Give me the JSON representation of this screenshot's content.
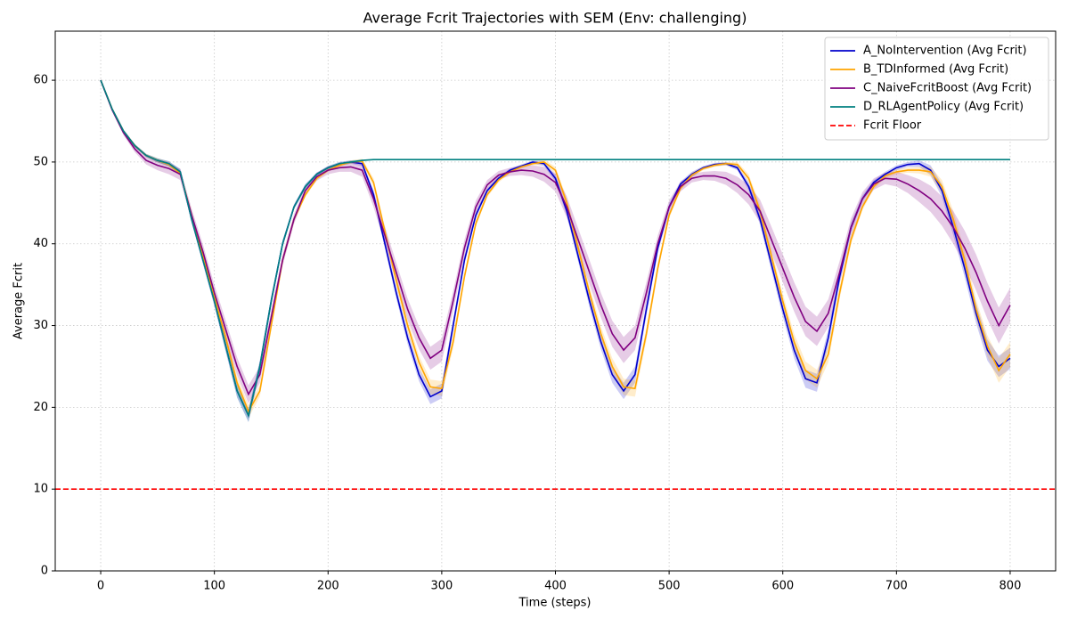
{
  "chart_data": {
    "type": "line",
    "title": "Average Fcrit Trajectories with SEM (Env: challenging)",
    "x_label": "Time (steps)",
    "y_label": "Average Fcrit",
    "x": [
      0,
      10,
      20,
      30,
      40,
      50,
      60,
      70,
      80,
      90,
      100,
      110,
      120,
      130,
      140,
      150,
      160,
      170,
      180,
      190,
      200,
      210,
      220,
      230,
      240,
      250,
      260,
      270,
      280,
      290,
      300,
      310,
      320,
      330,
      340,
      350,
      360,
      370,
      380,
      390,
      400,
      410,
      420,
      430,
      440,
      450,
      460,
      470,
      480,
      490,
      500,
      510,
      520,
      530,
      540,
      550,
      560,
      570,
      580,
      590,
      600,
      610,
      620,
      630,
      640,
      650,
      660,
      670,
      680,
      690,
      700,
      710,
      720,
      730,
      740,
      750,
      760,
      770,
      780,
      790,
      800
    ],
    "series": [
      {
        "name": "A_NoIntervention (Avg Fcrit)",
        "color": "#0000cc",
        "values": [
          60,
          56.5,
          53.8,
          52,
          50.8,
          50.2,
          49.8,
          48.8,
          43,
          38,
          33,
          27.5,
          22,
          19,
          25,
          33,
          40,
          44.5,
          47,
          48.5,
          49.3,
          49.8,
          50,
          49.8,
          46,
          40,
          34,
          28.5,
          24,
          21.3,
          22,
          30,
          38,
          43.5,
          46.5,
          48,
          49,
          49.5,
          50,
          49.8,
          48,
          44,
          38.5,
          33,
          28,
          24,
          22,
          24,
          32,
          39.5,
          44.5,
          47.3,
          48.5,
          49.3,
          49.7,
          49.8,
          49.3,
          47,
          43,
          37.5,
          32,
          27,
          23.5,
          23,
          28.5,
          36,
          42,
          45.5,
          47.5,
          48.5,
          49.3,
          49.7,
          49.8,
          49,
          46.5,
          42,
          37,
          31.5,
          27,
          25,
          26
        ],
        "sem": [
          0,
          0.1,
          0.15,
          0.2,
          0.2,
          0.25,
          0.3,
          0.3,
          0.4,
          0.5,
          0.6,
          0.7,
          0.8,
          0.8,
          0.7,
          0.6,
          0.4,
          0.3,
          0.3,
          0.2,
          0.2,
          0.2,
          0.2,
          0.3,
          0.5,
          0.6,
          0.7,
          0.8,
          0.8,
          0.9,
          0.9,
          0.8,
          0.5,
          0.4,
          0.3,
          0.3,
          0.2,
          0.2,
          0.2,
          0.3,
          0.4,
          0.6,
          0.7,
          0.8,
          0.9,
          1,
          1,
          1,
          0.8,
          0.6,
          0.4,
          0.3,
          0.3,
          0.2,
          0.2,
          0.2,
          0.3,
          0.5,
          0.7,
          0.8,
          0.9,
          1,
          1.1,
          1.1,
          1,
          0.8,
          0.6,
          0.4,
          0.3,
          0.3,
          0.3,
          0.3,
          0.4,
          0.6,
          0.8,
          1,
          1.1,
          1.2,
          1.3,
          1.3,
          1.3
        ]
      },
      {
        "name": "B_TDInformed (Avg Fcrit)",
        "color": "#ffa500",
        "values": [
          60,
          56.5,
          53.8,
          52,
          50.8,
          50.2,
          49.7,
          48.6,
          43.5,
          38.5,
          33.5,
          28.5,
          23,
          19.5,
          22,
          30,
          38,
          43,
          46,
          48,
          49,
          49.6,
          50,
          50.1,
          47.5,
          41.5,
          35.5,
          30,
          25.5,
          22.5,
          22.3,
          28,
          36,
          42.5,
          46,
          47.8,
          48.8,
          49.4,
          49.8,
          50,
          49,
          45,
          39.5,
          34,
          29,
          25,
          22.5,
          22.3,
          29,
          37,
          43.5,
          46.8,
          48.4,
          49.2,
          49.6,
          49.8,
          49.7,
          48,
          44,
          38.5,
          33,
          28,
          24.5,
          23.5,
          26.5,
          34,
          40.5,
          44.5,
          47,
          48.3,
          48.8,
          49,
          49,
          48.8,
          47,
          43,
          38,
          32,
          27.5,
          24.5,
          26.5
        ],
        "sem": [
          0,
          0.1,
          0.15,
          0.2,
          0.2,
          0.25,
          0.3,
          0.3,
          0.4,
          0.5,
          0.6,
          0.7,
          0.8,
          0.8,
          0.7,
          0.6,
          0.4,
          0.3,
          0.3,
          0.2,
          0.2,
          0.2,
          0.2,
          0.3,
          0.5,
          0.6,
          0.7,
          0.8,
          0.8,
          0.9,
          0.9,
          0.8,
          0.5,
          0.4,
          0.3,
          0.3,
          0.2,
          0.2,
          0.2,
          0.3,
          0.4,
          0.6,
          0.7,
          0.8,
          0.9,
          1,
          1,
          1,
          0.8,
          0.6,
          0.4,
          0.3,
          0.3,
          0.2,
          0.2,
          0.2,
          0.3,
          0.5,
          0.7,
          0.8,
          0.9,
          1,
          1.1,
          1.1,
          1,
          0.8,
          0.6,
          0.4,
          0.3,
          0.3,
          0.3,
          0.3,
          0.4,
          0.6,
          0.8,
          1,
          1.1,
          1.2,
          1.3,
          1.5,
          1.5
        ]
      },
      {
        "name": "C_NaiveFcritBoost (Avg Fcrit)",
        "color": "#800080",
        "values": [
          60,
          56.4,
          53.6,
          51.6,
          50.2,
          49.6,
          49.2,
          48.5,
          43.5,
          39,
          34,
          29.5,
          25,
          21.6,
          24,
          31,
          38,
          43,
          46.5,
          48.2,
          49,
          49.3,
          49.4,
          49,
          45.5,
          41,
          36.5,
          32,
          28.5,
          26,
          27,
          33,
          39.5,
          44.5,
          47.2,
          48.4,
          48.8,
          49,
          48.9,
          48.5,
          47.5,
          44.5,
          40.5,
          36.5,
          32.5,
          29,
          27,
          28.5,
          34,
          40,
          44.5,
          47,
          48,
          48.3,
          48.3,
          48,
          47.2,
          46,
          44,
          40.5,
          37,
          33.5,
          30.5,
          29.3,
          31.5,
          36.5,
          42,
          45.5,
          47.3,
          48,
          47.9,
          47.3,
          46.5,
          45.5,
          44,
          42,
          39.5,
          36.5,
          33,
          30,
          32.5
        ],
        "sem": [
          0,
          0.2,
          0.3,
          0.4,
          0.5,
          0.6,
          0.7,
          0.7,
          0.8,
          0.9,
          1,
          1.1,
          1.1,
          1.1,
          1,
          0.9,
          0.7,
          0.6,
          0.5,
          0.5,
          0.5,
          0.5,
          0.6,
          0.8,
          1,
          1.1,
          1.2,
          1.3,
          1.4,
          1.4,
          1.4,
          1.2,
          1,
          0.8,
          0.6,
          0.5,
          0.5,
          0.6,
          0.7,
          0.9,
          1.1,
          1.3,
          1.4,
          1.5,
          1.5,
          1.6,
          1.6,
          1.5,
          1.3,
          1,
          0.8,
          0.6,
          0.5,
          0.5,
          0.6,
          0.8,
          1,
          1.2,
          1.4,
          1.6,
          1.7,
          1.8,
          1.8,
          1.8,
          1.7,
          1.4,
          1.1,
          0.8,
          0.7,
          0.7,
          0.9,
          1.1,
          1.4,
          1.6,
          1.8,
          2,
          2.1,
          2.2,
          2.2,
          2.2,
          2.1
        ]
      },
      {
        "name": "D_RLAgentPolicy (Avg Fcrit)",
        "color": "#008080",
        "values": [
          60,
          56.5,
          53.8,
          52,
          50.8,
          50.2,
          49.8,
          48.8,
          43,
          38,
          33,
          27.5,
          22,
          19,
          25,
          33,
          40,
          44.5,
          47,
          48.5,
          49.3,
          49.8,
          50,
          50.2,
          50.3,
          50.3,
          50.3,
          50.3,
          50.3,
          50.3,
          50.3,
          50.3,
          50.3,
          50.3,
          50.3,
          50.3,
          50.3,
          50.3,
          50.3,
          50.3,
          50.3,
          50.3,
          50.3,
          50.3,
          50.3,
          50.3,
          50.3,
          50.3,
          50.3,
          50.3,
          50.3,
          50.3,
          50.3,
          50.3,
          50.3,
          50.3,
          50.3,
          50.3,
          50.3,
          50.3,
          50.3,
          50.3,
          50.3,
          50.3,
          50.3,
          50.3,
          50.3,
          50.3,
          50.3,
          50.3,
          50.3,
          50.3,
          50.3,
          50.3,
          50.3,
          50.3,
          50.3,
          50.3,
          50.3,
          50.3,
          50.3
        ],
        "sem": [
          0,
          0.1,
          0.15,
          0.2,
          0.2,
          0.25,
          0.3,
          0.3,
          0.4,
          0.5,
          0.6,
          0.7,
          0.8,
          0.8,
          0.7,
          0.6,
          0.4,
          0.3,
          0.3,
          0.2,
          0.2,
          0.2,
          0.2,
          0.1,
          0.05,
          0.05,
          0.05,
          0.05,
          0.05,
          0.05,
          0.05,
          0.05,
          0.05,
          0.05,
          0.05,
          0.05,
          0.05,
          0.05,
          0.05,
          0.05,
          0.05,
          0.05,
          0.05,
          0.05,
          0.05,
          0.05,
          0.05,
          0.05,
          0.05,
          0.05,
          0.05,
          0.05,
          0.05,
          0.05,
          0.05,
          0.05,
          0.05,
          0.05,
          0.05,
          0.05,
          0.05,
          0.05,
          0.05,
          0.05,
          0.05,
          0.05,
          0.05,
          0.05,
          0.05,
          0.05,
          0.05,
          0.05,
          0.05,
          0.05,
          0.05,
          0.05,
          0.05,
          0.05,
          0.05,
          0.05,
          0.05
        ]
      }
    ],
    "hlines": [
      {
        "name": "Fcrit Floor",
        "color": "#ff0000",
        "y": 10,
        "dashed": true
      }
    ],
    "xlim": [
      -40,
      840
    ],
    "xticks": [
      0,
      100,
      200,
      300,
      400,
      500,
      600,
      700,
      800
    ],
    "ylim": [
      0,
      66
    ],
    "yticks": [
      0,
      10,
      20,
      30,
      40,
      50,
      60
    ],
    "grid": true,
    "legend": "upper right"
  }
}
